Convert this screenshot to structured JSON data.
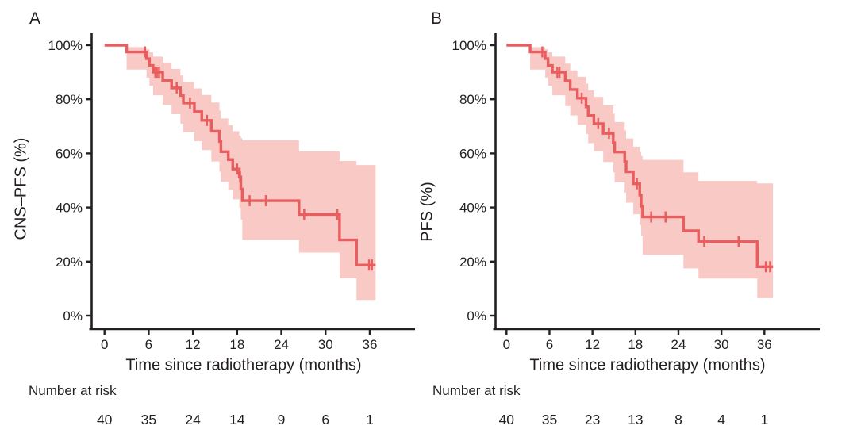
{
  "figure": {
    "background": "#ffffff",
    "text_color": "#231f20"
  },
  "chart_data": [
    {
      "type": "line",
      "subtype": "kaplan-meier-step",
      "panel_label": "A",
      "ylabel": "CNS–PFS (%)",
      "xlabel": "Time since radiotherapy (months)",
      "x_ticks": [
        0,
        6,
        12,
        18,
        24,
        30,
        36
      ],
      "y_ticks_pct": [
        0,
        20,
        40,
        60,
        80,
        100
      ],
      "y_tick_labels": [
        "0%",
        "20%",
        "40%",
        "60%",
        "80%",
        "100%"
      ],
      "xlim": [
        0,
        42
      ],
      "ylim": [
        0,
        100
      ],
      "grid": false,
      "legend": "none",
      "colors": {
        "line": "#e95d5e",
        "ci_band": "#f9c9c6"
      },
      "steps_month_pct": [
        [
          0,
          100
        ],
        [
          3,
          97.5
        ],
        [
          5.7,
          95
        ],
        [
          6.1,
          92.5
        ],
        [
          6.6,
          90
        ],
        [
          7.9,
          87
        ],
        [
          9.1,
          84.2
        ],
        [
          10.3,
          81.4
        ],
        [
          10.7,
          78.6
        ],
        [
          12.2,
          75.4
        ],
        [
          13.2,
          72.2
        ],
        [
          14.5,
          68.2
        ],
        [
          15.6,
          64.4
        ],
        [
          15.8,
          60.6
        ],
        [
          16.8,
          57.7
        ],
        [
          17.4,
          54.2
        ],
        [
          18.3,
          51.3
        ],
        [
          18.5,
          46.8
        ],
        [
          18.7,
          42.5
        ],
        [
          26.4,
          37.4
        ],
        [
          31.9,
          28
        ],
        [
          34.2,
          18.7
        ]
      ],
      "curve_end_month": 36.8,
      "censor_marks_month_pct": [
        [
          5.5,
          97.5
        ],
        [
          6.9,
          90
        ],
        [
          7.1,
          90
        ],
        [
          7.4,
          90
        ],
        [
          9.8,
          84.2
        ],
        [
          11.6,
          78.6
        ],
        [
          13.9,
          72.2
        ],
        [
          18,
          54.2
        ],
        [
          18.4,
          51.3
        ],
        [
          19.7,
          42.5
        ],
        [
          21.9,
          42.5
        ],
        [
          27.1,
          37.4
        ],
        [
          31.6,
          37.4
        ],
        [
          35.9,
          18.7
        ],
        [
          36.3,
          18.7
        ]
      ],
      "ci_band_month_lo_hi": [
        [
          3,
          91,
          99.3
        ],
        [
          5.7,
          88,
          98.5
        ],
        [
          6.1,
          85,
          97.4
        ],
        [
          6.6,
          81.5,
          95.8
        ],
        [
          7.9,
          78,
          93.6
        ],
        [
          9.1,
          74.5,
          91.2
        ],
        [
          10.3,
          71,
          88.8
        ],
        [
          10.7,
          67.8,
          86.3
        ],
        [
          12.2,
          64.5,
          84
        ],
        [
          13.2,
          61.2,
          81.6
        ],
        [
          14.5,
          57,
          78.8
        ],
        [
          15.6,
          53.2,
          75.8
        ],
        [
          15.8,
          49.5,
          72.9
        ],
        [
          16.8,
          46.5,
          70.4
        ],
        [
          17.4,
          43,
          68.2
        ],
        [
          18.3,
          40,
          66.5
        ],
        [
          18.5,
          35.5,
          65.6
        ],
        [
          18.7,
          28,
          64.8
        ],
        [
          26.4,
          23.3,
          60.7
        ],
        [
          31.9,
          13.8,
          57.2
        ],
        [
          34.2,
          5.8,
          55.7
        ]
      ],
      "number_at_risk": {
        "label": "Number at risk",
        "times": [
          0,
          6,
          12,
          18,
          24,
          30,
          36
        ],
        "counts": [
          40,
          35,
          24,
          14,
          9,
          6,
          1
        ]
      }
    },
    {
      "type": "line",
      "subtype": "kaplan-meier-step",
      "panel_label": "B",
      "ylabel": "PFS (%)",
      "xlabel": "Time since radiotherapy (months)",
      "x_ticks": [
        0,
        6,
        12,
        18,
        24,
        30,
        36
      ],
      "y_ticks_pct": [
        0,
        20,
        40,
        60,
        80,
        100
      ],
      "y_tick_labels": [
        "0%",
        "20%",
        "40%",
        "60%",
        "80%",
        "100%"
      ],
      "xlim": [
        0,
        42
      ],
      "ylim": [
        0,
        100
      ],
      "grid": false,
      "legend": "none",
      "colors": {
        "line": "#e95d5e",
        "ci_band": "#f9c9c6"
      },
      "steps_month_pct": [
        [
          0,
          100
        ],
        [
          3.3,
          97.5
        ],
        [
          5.4,
          95
        ],
        [
          5.8,
          92.5
        ],
        [
          6.4,
          90
        ],
        [
          8.2,
          86.8
        ],
        [
          8.9,
          83.6
        ],
        [
          9.9,
          80.4
        ],
        [
          11.1,
          77.2
        ],
        [
          11.4,
          74
        ],
        [
          12.2,
          71
        ],
        [
          13.5,
          67.4
        ],
        [
          14.9,
          63.9
        ],
        [
          15.1,
          60.5
        ],
        [
          16.5,
          56.9
        ],
        [
          16.7,
          53.2
        ],
        [
          17.7,
          48.8
        ],
        [
          18.6,
          44.6
        ],
        [
          18.8,
          40.4
        ],
        [
          19,
          36.5
        ],
        [
          24.7,
          31.4
        ],
        [
          26.8,
          27.4
        ],
        [
          35,
          18.1
        ]
      ],
      "curve_end_month": 37.2,
      "censor_marks_month_pct": [
        [
          5,
          97.5
        ],
        [
          7.1,
          90
        ],
        [
          7.4,
          90
        ],
        [
          10.5,
          80.4
        ],
        [
          12.8,
          71
        ],
        [
          14.3,
          67.4
        ],
        [
          18.2,
          48.8
        ],
        [
          20.2,
          36.5
        ],
        [
          22.2,
          36.5
        ],
        [
          27.6,
          27.4
        ],
        [
          32.4,
          27.4
        ],
        [
          36.2,
          18.1
        ],
        [
          36.8,
          18.1
        ]
      ],
      "ci_band_month_lo_hi": [
        [
          3.3,
          91,
          99.3
        ],
        [
          5.4,
          88,
          98.5
        ],
        [
          5.8,
          85,
          97.4
        ],
        [
          6.4,
          81.5,
          95.8
        ],
        [
          8.2,
          77.5,
          93.2
        ],
        [
          8.9,
          74,
          90.7
        ],
        [
          9.9,
          70.6,
          88.3
        ],
        [
          11.1,
          67.2,
          85.8
        ],
        [
          11.4,
          63.8,
          83.3
        ],
        [
          12.2,
          60.8,
          80.9
        ],
        [
          13.5,
          56.8,
          77.7
        ],
        [
          14.9,
          53,
          74.7
        ],
        [
          15.1,
          49.3,
          71.6
        ],
        [
          16.5,
          45.5,
          68.5
        ],
        [
          16.7,
          41.8,
          65.5
        ],
        [
          17.7,
          37.5,
          62.5
        ],
        [
          18.6,
          33.5,
          60.5
        ],
        [
          18.8,
          29.5,
          59
        ],
        [
          19,
          22.5,
          57.6
        ],
        [
          24.7,
          17.5,
          53
        ],
        [
          26.8,
          13.7,
          49.8
        ],
        [
          35,
          6.5,
          48.9
        ]
      ],
      "number_at_risk": {
        "label": "Number at risk",
        "times": [
          0,
          6,
          12,
          18,
          24,
          30,
          36
        ],
        "counts": [
          40,
          35,
          23,
          13,
          8,
          4,
          1
        ]
      }
    }
  ]
}
